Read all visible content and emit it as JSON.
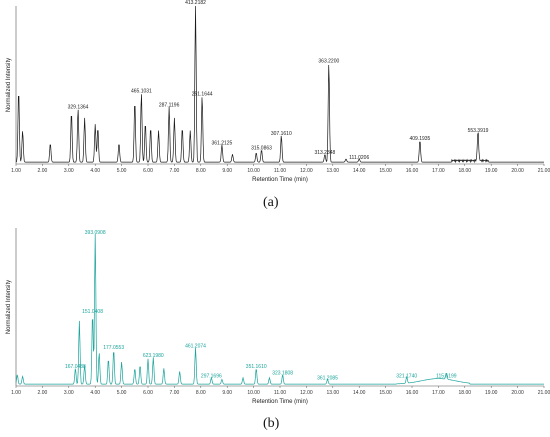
{
  "chart_data": [
    {
      "type": "line",
      "panel_label": "(a)",
      "xlabel": "Retention Time (min)",
      "ylabel": "Normalized Intensity",
      "xlim": [
        1.0,
        21.0
      ],
      "ylim": [
        0,
        1
      ],
      "x_ticks": [
        "1.00",
        "2.00",
        "3.00",
        "4.00",
        "5.00",
        "6.00",
        "7.00",
        "8.00",
        "9.00",
        "10.00",
        "11.00",
        "12.00",
        "13.00",
        "14.00",
        "15.00",
        "16.00",
        "17.00",
        "18.00",
        "19.00",
        "20.00",
        "21.00"
      ],
      "line_color": "#1a1a1a",
      "peaks": [
        {
          "x": 1.1,
          "y": 0.46
        },
        {
          "x": 1.25,
          "y": 0.2
        },
        {
          "x": 2.3,
          "y": 0.12
        },
        {
          "x": 3.1,
          "y": 0.32
        },
        {
          "x": 3.35,
          "y": 0.34
        },
        {
          "x": 3.6,
          "y": 0.28
        },
        {
          "x": 4.0,
          "y": 0.24
        },
        {
          "x": 4.1,
          "y": 0.22
        },
        {
          "x": 4.9,
          "y": 0.12
        },
        {
          "x": 5.5,
          "y": 0.39
        },
        {
          "x": 5.75,
          "y": 0.44
        },
        {
          "x": 5.9,
          "y": 0.25
        },
        {
          "x": 6.1,
          "y": 0.22
        },
        {
          "x": 6.4,
          "y": 0.2
        },
        {
          "x": 6.8,
          "y": 0.35
        },
        {
          "x": 7.0,
          "y": 0.28
        },
        {
          "x": 7.3,
          "y": 0.22
        },
        {
          "x": 7.6,
          "y": 0.2
        },
        {
          "x": 7.8,
          "y": 1.0
        },
        {
          "x": 8.05,
          "y": 0.42
        },
        {
          "x": 8.8,
          "y": 0.11
        },
        {
          "x": 9.2,
          "y": 0.05
        },
        {
          "x": 10.1,
          "y": 0.06
        },
        {
          "x": 10.3,
          "y": 0.08
        },
        {
          "x": 11.05,
          "y": 0.17
        },
        {
          "x": 12.7,
          "y": 0.05
        },
        {
          "x": 12.85,
          "y": 0.63
        },
        {
          "x": 13.5,
          "y": 0.02
        },
        {
          "x": 14.0,
          "y": 0.02
        },
        {
          "x": 16.3,
          "y": 0.14
        },
        {
          "x": 18.5,
          "y": 0.19
        }
      ],
      "annotations": [
        {
          "x": 3.35,
          "y": 0.34,
          "label": "329.1364"
        },
        {
          "x": 5.75,
          "y": 0.44,
          "label": "465.1031"
        },
        {
          "x": 6.8,
          "y": 0.35,
          "label": "287.1196"
        },
        {
          "x": 7.8,
          "y": 1.0,
          "label": "413.2182"
        },
        {
          "x": 8.05,
          "y": 0.42,
          "label": "251.1644"
        },
        {
          "x": 8.8,
          "y": 0.11,
          "label": "361.2125"
        },
        {
          "x": 10.3,
          "y": 0.08,
          "label": "315.0863"
        },
        {
          "x": 11.05,
          "y": 0.17,
          "label": "307.1610"
        },
        {
          "x": 12.7,
          "y": 0.05,
          "label": "313.2348"
        },
        {
          "x": 12.85,
          "y": 0.63,
          "label": "363.2200"
        },
        {
          "x": 14.0,
          "y": 0.02,
          "label": "111.0206"
        },
        {
          "x": 16.3,
          "y": 0.14,
          "label": "409.1935"
        },
        {
          "x": 18.5,
          "y": 0.19,
          "label": "553.3919"
        }
      ]
    },
    {
      "type": "line",
      "panel_label": "(b)",
      "xlabel": "Retention Time (min)",
      "ylabel": "Normalized Intensity",
      "xlim": [
        1.0,
        21.0
      ],
      "ylim": [
        0,
        1
      ],
      "x_ticks": [
        "1.00",
        "2.00",
        "3.00",
        "4.00",
        "5.00",
        "6.00",
        "7.00",
        "8.00",
        "9.00",
        "10.00",
        "11.00",
        "12.00",
        "13.00",
        "14.00",
        "15.00",
        "16.00",
        "17.00",
        "18.00",
        "19.00",
        "20.00",
        "21.00"
      ],
      "line_color": "#1aa39a",
      "peaks": [
        {
          "x": 1.05,
          "y": 0.06
        },
        {
          "x": 1.25,
          "y": 0.05
        },
        {
          "x": 3.25,
          "y": 0.1
        },
        {
          "x": 3.4,
          "y": 0.4
        },
        {
          "x": 3.6,
          "y": 0.12
        },
        {
          "x": 3.9,
          "y": 0.45
        },
        {
          "x": 4.0,
          "y": 0.95
        },
        {
          "x": 4.15,
          "y": 0.2
        },
        {
          "x": 4.5,
          "y": 0.16
        },
        {
          "x": 4.7,
          "y": 0.22
        },
        {
          "x": 5.0,
          "y": 0.14
        },
        {
          "x": 5.5,
          "y": 0.1
        },
        {
          "x": 5.7,
          "y": 0.12
        },
        {
          "x": 6.0,
          "y": 0.16
        },
        {
          "x": 6.2,
          "y": 0.17
        },
        {
          "x": 6.6,
          "y": 0.1
        },
        {
          "x": 7.2,
          "y": 0.08
        },
        {
          "x": 7.8,
          "y": 0.23
        },
        {
          "x": 8.4,
          "y": 0.04
        },
        {
          "x": 8.8,
          "y": 0.03
        },
        {
          "x": 9.6,
          "y": 0.04
        },
        {
          "x": 10.1,
          "y": 0.1
        },
        {
          "x": 10.6,
          "y": 0.04
        },
        {
          "x": 11.1,
          "y": 0.06
        },
        {
          "x": 12.8,
          "y": 0.03
        },
        {
          "x": 15.8,
          "y": 0.04
        },
        {
          "x": 17.3,
          "y": 0.04
        }
      ],
      "annotations": [
        {
          "x": 3.25,
          "y": 0.1,
          "label": "167.0488"
        },
        {
          "x": 4.0,
          "y": 0.95,
          "label": "393.0908"
        },
        {
          "x": 3.9,
          "y": 0.45,
          "label": "151.0408"
        },
        {
          "x": 4.7,
          "y": 0.22,
          "label": "177.0553"
        },
        {
          "x": 6.2,
          "y": 0.17,
          "label": "623.1980"
        },
        {
          "x": 7.8,
          "y": 0.23,
          "label": "461.2074"
        },
        {
          "x": 8.4,
          "y": 0.04,
          "label": "297.1696"
        },
        {
          "x": 10.1,
          "y": 0.1,
          "label": "351.1610"
        },
        {
          "x": 11.1,
          "y": 0.06,
          "label": "323.1808"
        },
        {
          "x": 12.8,
          "y": 0.03,
          "label": "361.2085"
        },
        {
          "x": 15.8,
          "y": 0.04,
          "label": "321.1740"
        },
        {
          "x": 17.3,
          "y": 0.04,
          "label": "115.6199"
        }
      ]
    }
  ]
}
